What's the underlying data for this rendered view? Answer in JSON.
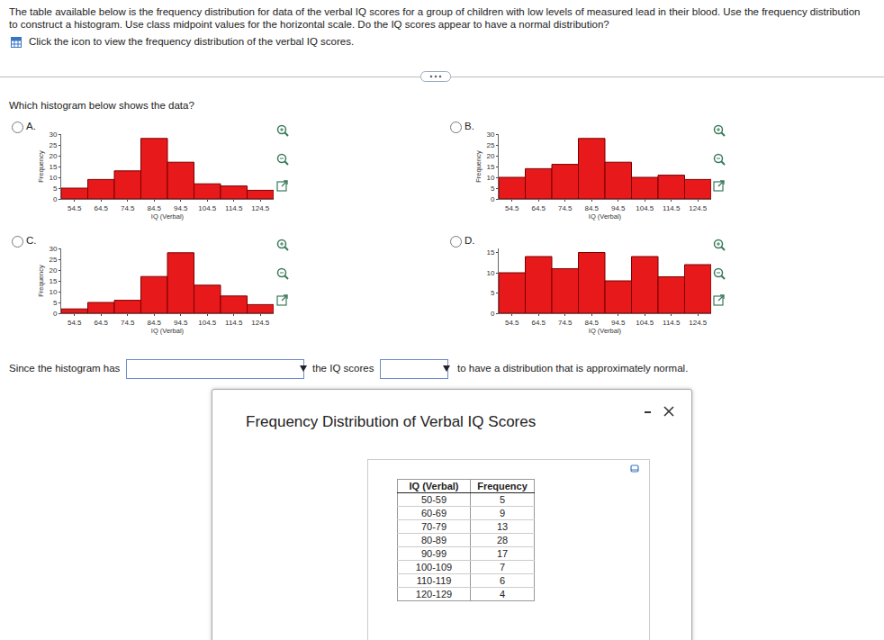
{
  "page": {
    "instructions": [
      "The table available below is the frequency distribution for data of the verbal IQ scores for a group of children with low levels of measured lead in their blood. Use the frequency distribution",
      "to construct a histogram. Use class midpoint values for the horizontal scale. Do the IQ scores appear to have a normal distribution?"
    ],
    "link": "Click the icon to view the frequency distribution of the verbal IQ scores.",
    "question": "Which histogram below shows the data?",
    "options": [
      "A.",
      "B.",
      "C.",
      "D."
    ],
    "answer_sentence": [
      "Since the histogram has",
      "the IQ scores",
      "to have a distribution that is approximately normal."
    ]
  },
  "chart_data": [
    {
      "type": "histogram",
      "bins": [
        49.5,
        59.5,
        69.5,
        79.5,
        89.5,
        99.5,
        109.5,
        119.5,
        129.5
      ],
      "values": [
        5,
        9,
        13,
        28,
        17,
        7,
        6,
        4
      ],
      "color": "#e8191b",
      "xlabel": "IQ (Verbal)",
      "ylabel": "Frequency",
      "xlim": [
        49.5,
        129.5
      ],
      "xticks": [
        54.5,
        64.5,
        74.5,
        84.5,
        94.5,
        104.5,
        114.5,
        124.5
      ],
      "ylim": [
        0,
        30
      ],
      "yticks": [
        0,
        5,
        10,
        15,
        20,
        25,
        30
      ]
    },
    {
      "type": "histogram",
      "bins": [
        49.5,
        59.5,
        69.5,
        79.5,
        89.5,
        99.5,
        109.5,
        119.5,
        129.5
      ],
      "values": [
        10,
        14,
        16,
        28,
        17,
        10,
        11,
        9
      ],
      "color": "#e8191b",
      "xlabel": "IQ (Verbal)",
      "ylabel": "Frequency",
      "xlim": [
        49.5,
        129.5
      ],
      "xticks": [
        54.5,
        64.5,
        74.5,
        84.5,
        94.5,
        104.5,
        114.5,
        124.5
      ],
      "ylim": [
        0,
        30
      ],
      "yticks": [
        0,
        5,
        10,
        15,
        20,
        25,
        30
      ]
    },
    {
      "type": "histogram",
      "bins": [
        49.5,
        59.5,
        69.5,
        79.5,
        89.5,
        99.5,
        109.5,
        119.5,
        129.5
      ],
      "values": [
        2,
        5,
        6,
        17,
        28,
        13,
        8,
        4
      ],
      "color": "#e8191b",
      "xlabel": "IQ (Verbal)",
      "ylabel": "Frequency",
      "xlim": [
        49.5,
        129.5
      ],
      "xticks": [
        54.5,
        64.5,
        74.5,
        84.5,
        94.5,
        104.5,
        114.5,
        124.5
      ],
      "ylim": [
        0,
        30
      ],
      "yticks": [
        0,
        5,
        10,
        15,
        20,
        25,
        30
      ]
    },
    {
      "type": "histogram",
      "bins": [
        49.5,
        59.5,
        69.5,
        79.5,
        89.5,
        99.5,
        109.5,
        119.5,
        129.5
      ],
      "values": [
        10,
        14,
        11,
        15,
        8,
        14,
        9,
        12
      ],
      "color": "#e8191b",
      "xlabel": "IQ (Verbal)",
      "xlim": [
        49.5,
        129.5
      ],
      "xticks": [
        54.5,
        64.5,
        74.5,
        84.5,
        94.5,
        104.5,
        114.5,
        124.5
      ],
      "ylim": [
        0,
        16
      ],
      "yticks": [
        0,
        5,
        10,
        15
      ]
    }
  ],
  "popup": {
    "title": "Frequency Distribution of Verbal IQ Scores",
    "table": {
      "header": [
        "IQ (Verbal)",
        "Frequency"
      ],
      "rows": [
        [
          "50-59",
          5
        ],
        [
          "60-69",
          9
        ],
        [
          "70-79",
          13
        ],
        [
          "80-89",
          28
        ],
        [
          "90-99",
          17
        ],
        [
          "100-109",
          7
        ],
        [
          "110-119",
          6
        ],
        [
          "120-129",
          4
        ]
      ]
    }
  }
}
